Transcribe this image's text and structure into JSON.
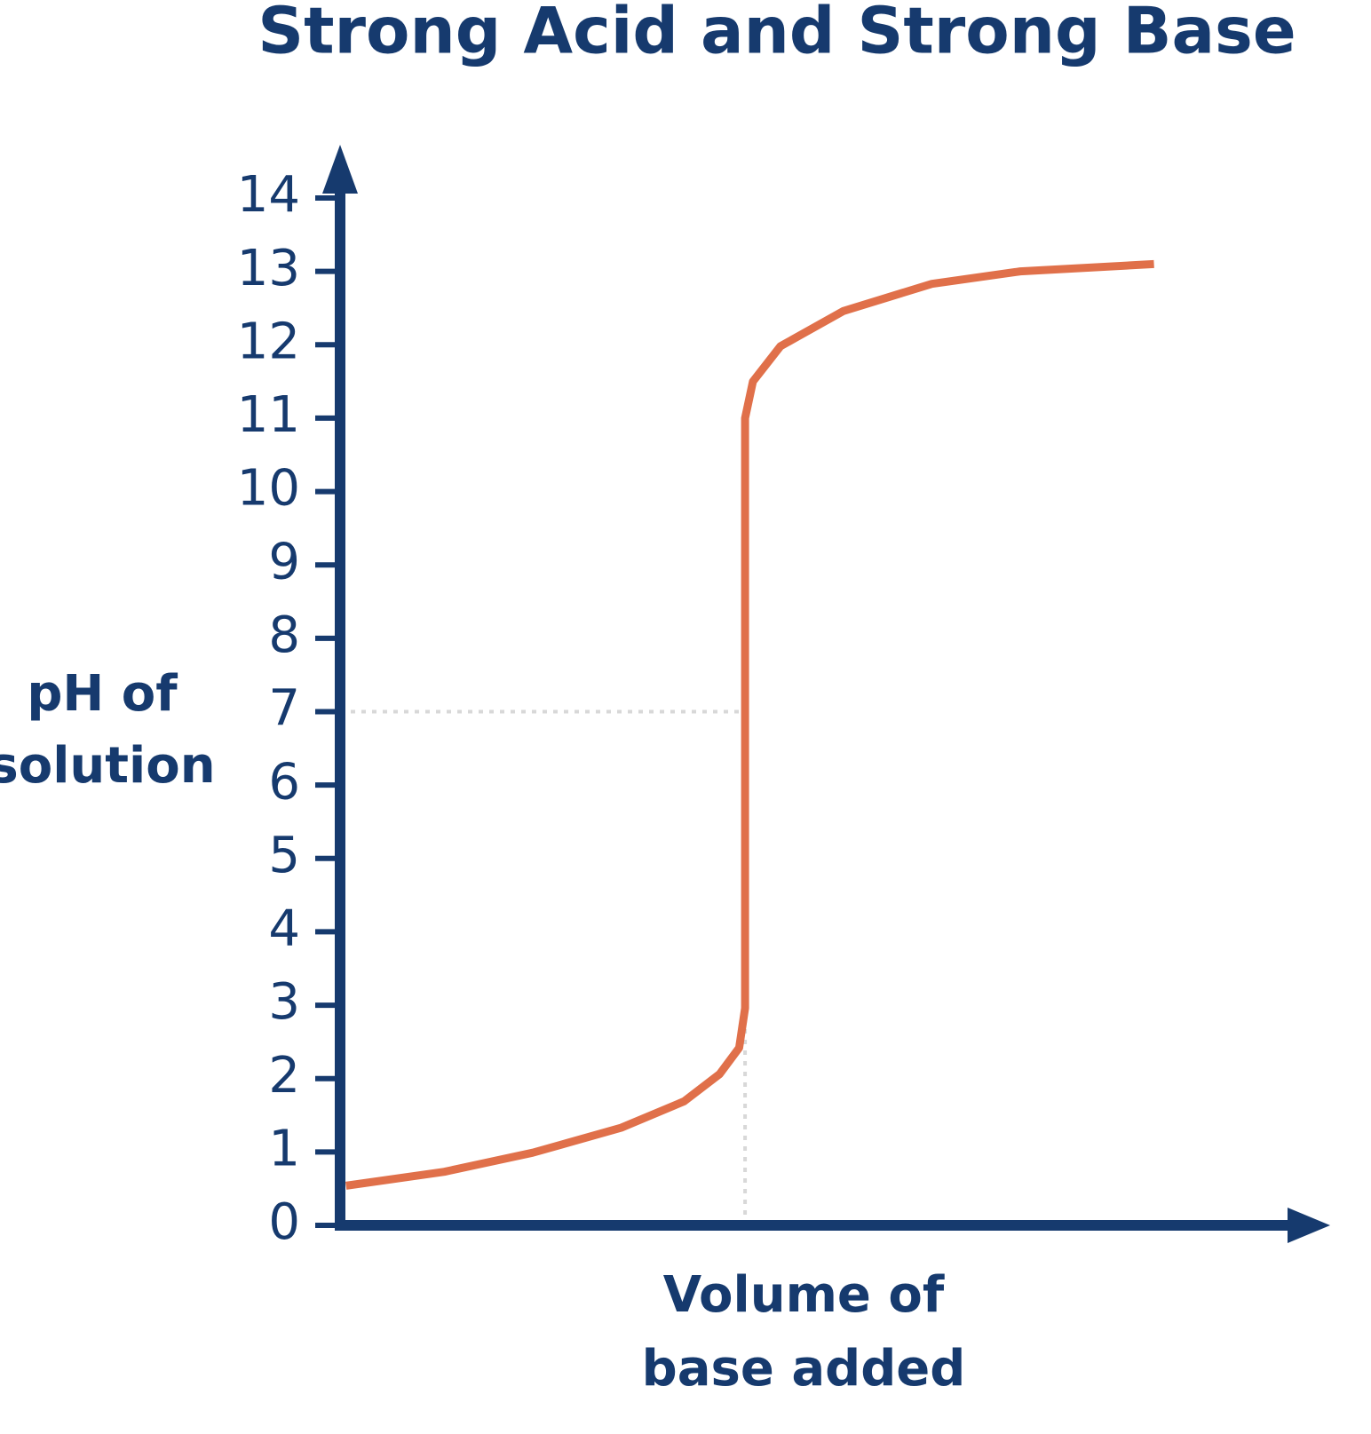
{
  "chart_data": {
    "type": "line",
    "title": "Strong Acid and Strong Base",
    "ylabel": [
      "pH of",
      "solution"
    ],
    "xlabel": [
      "Volume of",
      "base added"
    ],
    "x": [
      0.3,
      5.3,
      9.8,
      14.3,
      17.5,
      19.3,
      20.3,
      20.6,
      20.6,
      20.6,
      21.0,
      22.4,
      25.6,
      30.1,
      34.6,
      41.4
    ],
    "series": [
      {
        "color": "#e0704a",
        "values": [
          0.54,
          0.73,
          0.99,
          1.33,
          1.69,
          2.06,
          2.42,
          2.96,
          7.0,
          11.0,
          11.5,
          11.98,
          12.46,
          12.83,
          13.0,
          13.1
        ]
      }
    ],
    "xlim": [
      0,
      50
    ],
    "ylim": [
      0,
      14
    ],
    "yticks": [
      0,
      1,
      2,
      3,
      4,
      5,
      6,
      7,
      8,
      9,
      10,
      11,
      12,
      13,
      14
    ],
    "equivalence_point": {
      "x": 20.6,
      "y": 7
    },
    "axis_color": "#163a6e"
  }
}
